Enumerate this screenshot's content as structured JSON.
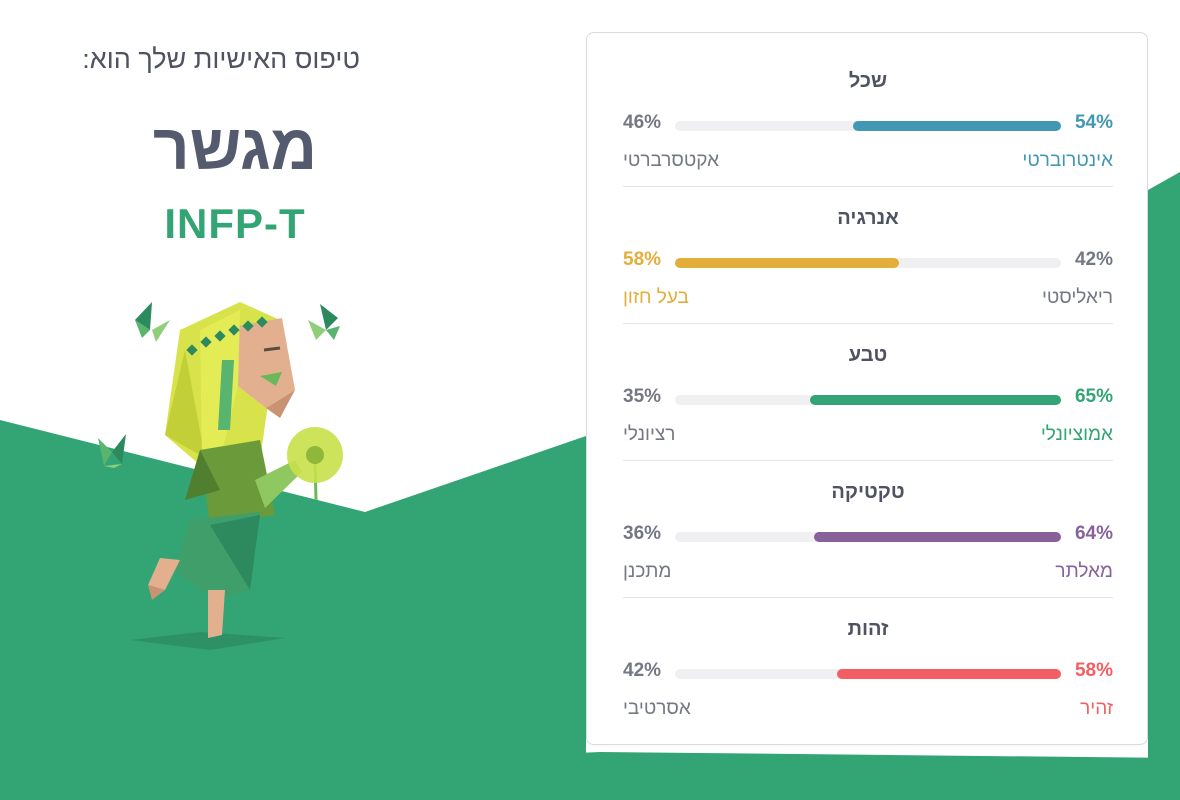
{
  "header": {
    "intro": "טיפוס האישיות שלך הוא:",
    "type_name": "מגשר",
    "type_code": "INFP-T"
  },
  "colors": {
    "brand_green": "#33a474",
    "mind": "#4298b4",
    "energy": "#e4ae3a",
    "nature": "#33a474",
    "tactics": "#88619a",
    "identity": "#f25e62"
  },
  "traits": [
    {
      "title": "שכל",
      "left_pct": "46%",
      "right_pct": "54%",
      "left_label": "אקטסרברטי",
      "right_label": "אינטרוברטי",
      "value": 54,
      "dominant": "right",
      "color": "#4298b4"
    },
    {
      "title": "אנרגיה",
      "left_pct": "58%",
      "right_pct": "42%",
      "left_label": "בעל חזון",
      "right_label": "ריאליסטי",
      "value": 58,
      "dominant": "left",
      "color": "#e4ae3a"
    },
    {
      "title": "טבע",
      "left_pct": "35%",
      "right_pct": "65%",
      "left_label": "רציונלי",
      "right_label": "אמוציונלי",
      "value": 65,
      "dominant": "right",
      "color": "#33a474"
    },
    {
      "title": "טקטיקה",
      "left_pct": "36%",
      "right_pct": "64%",
      "left_label": "מתכנן",
      "right_label": "מאלתר",
      "value": 64,
      "dominant": "right",
      "color": "#88619a"
    },
    {
      "title": "זהות",
      "left_pct": "42%",
      "right_pct": "58%",
      "left_label": "אסרטיבי",
      "right_label": "זהיר",
      "value": 58,
      "dominant": "right",
      "color": "#f25e62"
    }
  ]
}
